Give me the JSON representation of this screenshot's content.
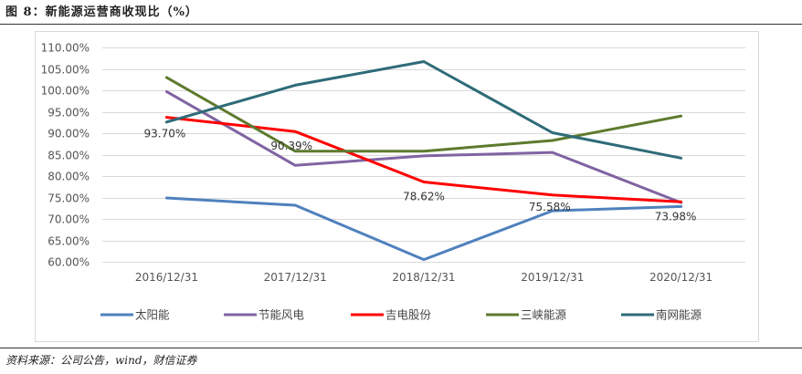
{
  "figure": {
    "title": "图 8：新能源运营商收现比（%）",
    "source": "资料来源：公司公告，wind，财信证券"
  },
  "chart_data": {
    "type": "line",
    "title": "新能源运营商收现比（%）",
    "xlabel": "",
    "ylabel": "",
    "categories": [
      "2016/12/31",
      "2017/12/31",
      "2018/12/31",
      "2019/12/31",
      "2020/12/31"
    ],
    "ylim": [
      60,
      110
    ],
    "ytick_step": 5,
    "ytick_labels": [
      "60.00%",
      "65.00%",
      "70.00%",
      "75.00%",
      "80.00%",
      "85.00%",
      "90.00%",
      "95.00%",
      "100.00%",
      "105.00%",
      "110.00%"
    ],
    "grid": true,
    "legend_position": "bottom",
    "series": [
      {
        "name": "太阳能",
        "color": "#4F81BD",
        "values": [
          74.9,
          73.2,
          60.5,
          71.9,
          72.9
        ]
      },
      {
        "name": "节能风电",
        "color": "#8064A2",
        "values": [
          99.7,
          82.5,
          84.7,
          85.5,
          73.8
        ]
      },
      {
        "name": "吉电股份",
        "color": "#FF0000",
        "values": [
          93.7,
          90.39,
          78.62,
          75.58,
          73.98
        ],
        "data_labels": [
          "93.70%",
          "90.39%",
          "78.62%",
          "75.58%",
          "73.98%"
        ]
      },
      {
        "name": "三峡能源",
        "color": "#5E7A2E",
        "values": [
          103.0,
          85.8,
          85.8,
          88.3,
          94.0
        ]
      },
      {
        "name": "南网能源",
        "color": "#2E6B78",
        "values": [
          92.6,
          101.2,
          106.7,
          90.1,
          84.2
        ]
      }
    ]
  }
}
